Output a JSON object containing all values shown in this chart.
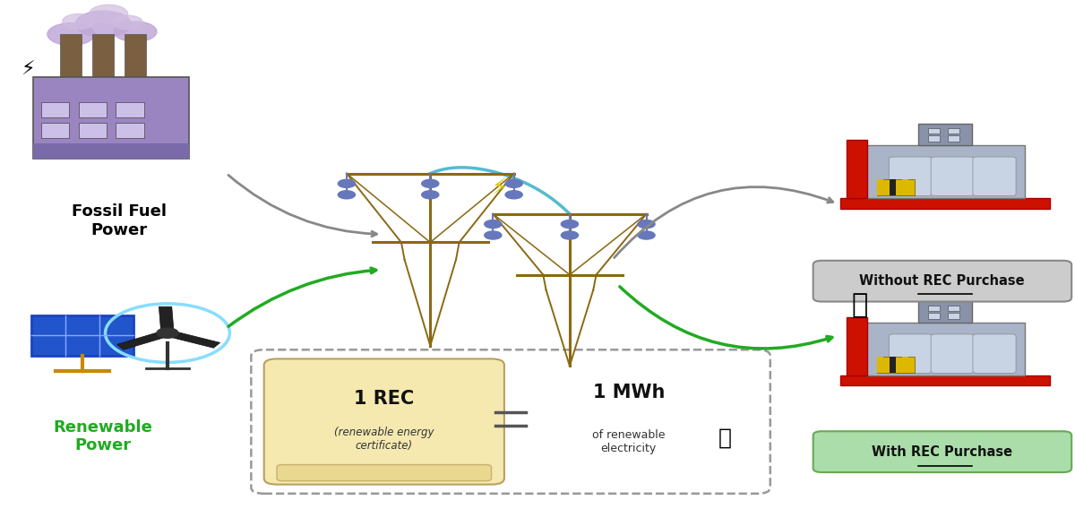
{
  "bg_color": "#ffffff",
  "fig_width": 12.0,
  "fig_height": 5.68,
  "fossil_fuel_label": "Fossil Fuel\nPower",
  "fossil_fuel_label_color": "#000000",
  "renewable_label": "Renewable\nPower",
  "renewable_label_color": "#22aa22",
  "factory_top_label": "Without REC Purchase",
  "factory_top_box_color": "#cccccc",
  "factory_bottom_label": "With REC Purchase",
  "factory_bottom_box_color": "#aaddaa",
  "rec_text_main": "1 REC",
  "rec_text_sub": "(renewable energy\ncertificate)",
  "rec_mwh": "1 MWh",
  "rec_mwh_sub": "of renewable\nelectricity",
  "arrow_fossil_color": "#888888",
  "arrow_green_color": "#22aa22",
  "tower_color": "#8B6914",
  "insulator_color": "#6677bb",
  "powerline_color": "#55bbcc"
}
